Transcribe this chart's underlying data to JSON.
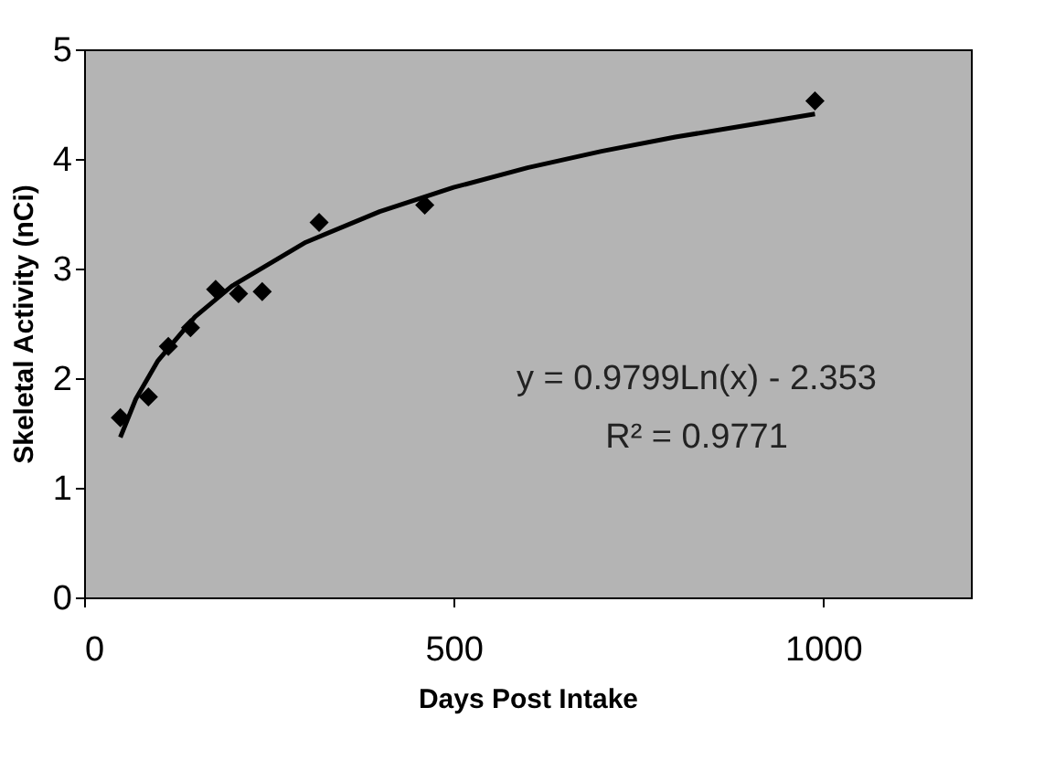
{
  "chart_data": {
    "type": "scatter",
    "xlabel": "Days Post Intake",
    "ylabel": "Skeletal Activity (nCi)",
    "xlim": [
      0,
      1200
    ],
    "xticks": [
      0,
      500,
      1000
    ],
    "ylim": [
      0,
      5
    ],
    "yticks": [
      0,
      1,
      2,
      3,
      4,
      5
    ],
    "grid": false,
    "series": [
      {
        "color": "#000000",
        "marker": "diamond",
        "x": [
          49,
          87,
          114,
          144,
          178,
          209,
          241,
          318,
          461,
          989
        ],
        "values": [
          1.64,
          1.83,
          2.29,
          2.46,
          2.81,
          2.77,
          2.79,
          3.42,
          3.58,
          4.53
        ]
      },
      {
        "type": "line",
        "color": "#000000",
        "marker": "none",
        "line_style": "solid",
        "x": [
          49,
          70,
          100,
          150,
          200,
          300,
          400,
          500,
          600,
          700,
          800,
          900,
          989
        ],
        "values": [
          1.46,
          1.81,
          2.16,
          2.56,
          2.84,
          3.24,
          3.52,
          3.74,
          3.92,
          4.07,
          4.2,
          4.31,
          4.41
        ]
      }
    ],
    "annotations": [
      "y = 0.9799Ln(x) - 2.353",
      "R² = 0.9771"
    ]
  }
}
